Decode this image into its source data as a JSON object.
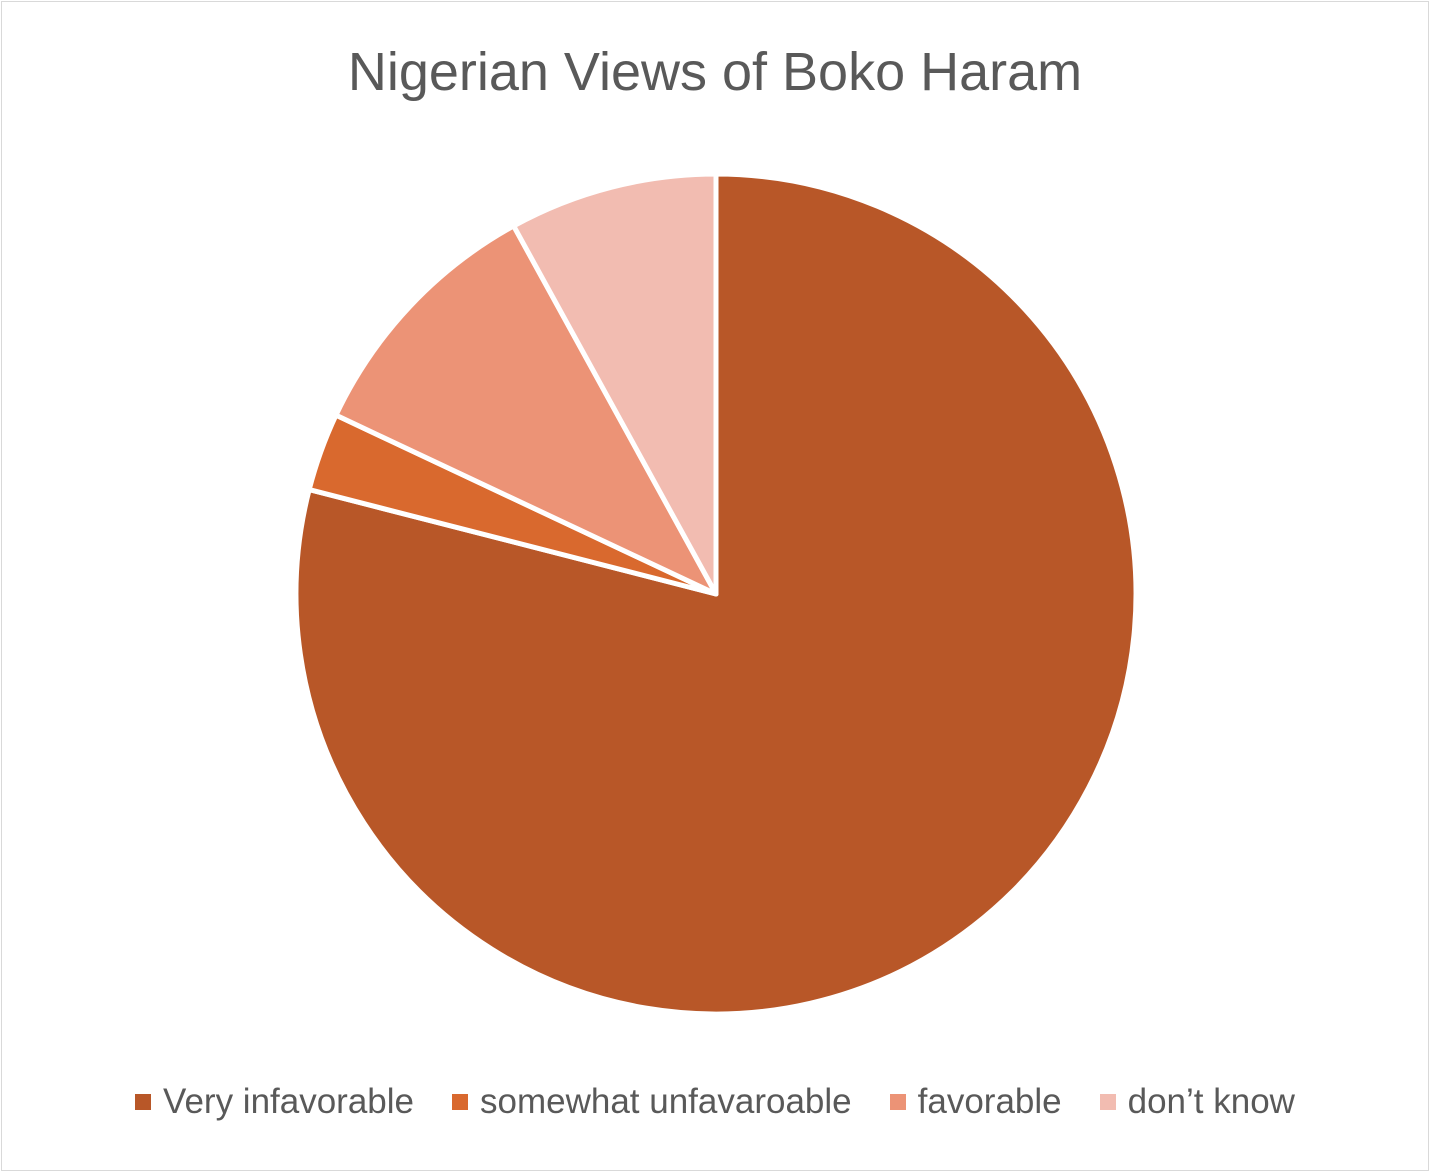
{
  "chart_data": {
    "type": "pie",
    "title": "Nigerian Views of Boko Haram",
    "categories": [
      "Very infavorable",
      "somewhat unfavaroable",
      "favorable",
      "don’t know"
    ],
    "values": [
      79,
      3,
      10,
      8
    ],
    "colors": [
      "#b85728",
      "#d9692e",
      "#ec9376",
      "#f2bcb1"
    ],
    "legend_position": "bottom",
    "start_angle": "12 o'clock, clockwise"
  }
}
